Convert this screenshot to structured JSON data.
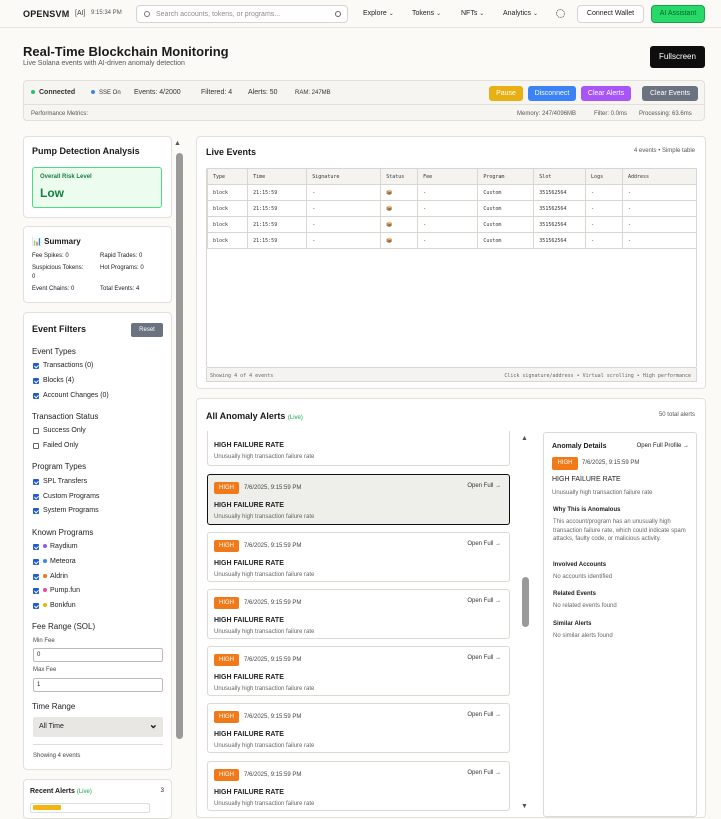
{
  "nav": {
    "brand": "OPENSVM",
    "ai": "[AI]",
    "time": "9:15:34 PM",
    "search_placeholder": "Search accounts, tokens, or programs...",
    "menus": [
      "Explore",
      "Tokens",
      "NFTs",
      "Analytics"
    ],
    "connect": "Connect Wallet",
    "assistant": "AI Assistant"
  },
  "page": {
    "title": "Real-Time Blockchain Monitoring",
    "subtitle": "Live Solana events with AI-driven anomaly detection",
    "fullscreen": "Fullscreen"
  },
  "status": {
    "connected": "Connected",
    "sse": "SSE On",
    "events": "Events: 4/2000",
    "filtered": "Filtered: 4",
    "alerts": "Alerts: 50",
    "ram": "RAM: 247MB",
    "perf_label": "Performance Metrics:",
    "memory": "Memory: 247/4096MB",
    "filter": "Filter: 0.0ms",
    "processing": "Processing: 63.6ms",
    "buttons": {
      "pause": "Pause",
      "disconnect": "Disconnect",
      "clear_alerts": "Clear Alerts",
      "clear_events": "Clear Events"
    }
  },
  "pump": {
    "title": "Pump Detection Analysis",
    "risk_label": "Overall Risk Level",
    "risk_value": "Low"
  },
  "summary": {
    "title": "📊 Summary",
    "fee_spikes": "Fee Spikes: 0",
    "rapid_trades": "Rapid Trades: 0",
    "suspicious": "Suspicious Tokens:",
    "suspicious_val": "0",
    "hot": "Hot Programs: 0",
    "chains": "Event Chains: 0",
    "total": "Total Events: 4"
  },
  "filters": {
    "title": "Event Filters",
    "reset": "Reset",
    "event_types": {
      "title": "Event Types",
      "items": [
        "Transactions (0)",
        "Blocks (4)",
        "Account Changes (0)"
      ]
    },
    "tx_status": {
      "title": "Transaction Status",
      "items": [
        "Success Only",
        "Failed Only"
      ]
    },
    "program_types": {
      "title": "Program Types",
      "items": [
        "SPL Transfers",
        "Custom Programs",
        "System Programs"
      ]
    },
    "known": {
      "title": "Known Programs",
      "items": [
        {
          "label": "Raydium",
          "color": "#8b5cf6"
        },
        {
          "label": "Meteora",
          "color": "#3b82f6"
        },
        {
          "label": "Aldrin",
          "color": "#f97316"
        },
        {
          "label": "Pump.fun",
          "color": "#ec4899"
        },
        {
          "label": "Bonkfun",
          "color": "#eab308"
        }
      ]
    },
    "fee": {
      "title": "Fee Range (SOL)",
      "min_label": "Min Fee",
      "min": "0",
      "max_label": "Max Fee",
      "max": "1"
    },
    "time": {
      "title": "Time Range",
      "value": "All Time"
    },
    "showing": "Showing 4 events"
  },
  "recent": {
    "title": "Recent Alerts",
    "live": "(Live)",
    "count": "3"
  },
  "live_events": {
    "title": "Live Events",
    "meta": "4 events • Simple table",
    "columns": [
      "Type",
      "Time",
      "Signature",
      "Status",
      "Fee",
      "Program",
      "Slot",
      "Logs",
      "Address"
    ],
    "rows": [
      [
        "block",
        "21:15:59",
        "-",
        "📦",
        "-",
        "Custom",
        "351562564",
        "-",
        "-"
      ],
      [
        "block",
        "21:15:59",
        "-",
        "📦",
        "-",
        "Custom",
        "351562564",
        "-",
        "-"
      ],
      [
        "block",
        "21:15:59",
        "-",
        "📦",
        "-",
        "Custom",
        "351562564",
        "-",
        "-"
      ],
      [
        "block",
        "21:15:59",
        "-",
        "📦",
        "-",
        "Custom",
        "351562564",
        "-",
        "-"
      ]
    ],
    "footer_left": "Showing 4 of 4 events",
    "footer_right": "Click signature/address • Virtual scrolling • High performance"
  },
  "anomaly": {
    "title": "All Anomaly Alerts",
    "live": "(Live)",
    "total": "50 total alerts",
    "partial": {
      "title": "HIGH FAILURE RATE",
      "desc": "Unusually high transaction failure rate"
    },
    "alerts": [
      {
        "badge": "HIGH",
        "date": "7/6/2025, 9:15:59 PM",
        "open": "Open Full →",
        "title": "HIGH FAILURE RATE",
        "desc": "Unusually high transaction failure rate"
      },
      {
        "badge": "HIGH",
        "date": "7/6/2025, 9:15:59 PM",
        "open": "Open Full →",
        "title": "HIGH FAILURE RATE",
        "desc": "Unusually high transaction failure rate"
      },
      {
        "badge": "HIGH",
        "date": "7/6/2025, 9:15:59 PM",
        "open": "Open Full →",
        "title": "HIGH FAILURE RATE",
        "desc": "Unusually high transaction failure rate"
      },
      {
        "badge": "HIGH",
        "date": "7/6/2025, 9:15:59 PM",
        "open": "Open Full →",
        "title": "HIGH FAILURE RATE",
        "desc": "Unusually high transaction failure rate"
      },
      {
        "badge": "HIGH",
        "date": "7/6/2025, 9:15:59 PM",
        "open": "Open Full →",
        "title": "HIGH FAILURE RATE",
        "desc": "Unusually high transaction failure rate"
      },
      {
        "badge": "HIGH",
        "date": "7/6/2025, 9:15:59 PM",
        "open": "Open Full →",
        "title": "HIGH FAILURE RATE",
        "desc": "Unusually high transaction failure rate"
      }
    ]
  },
  "details": {
    "title": "Anomaly Details",
    "open_profile": "Open Full Profile →",
    "badge": "HIGH",
    "date": "7/6/2025, 9:15:59 PM",
    "name": "HIGH FAILURE RATE",
    "desc": "Unusually high transaction failure rate",
    "why_title": "Why This is Anomalous",
    "why": "This account/program has an unusually high transaction failure rate, which could indicate spam attacks, faulty code, or malicious activity.",
    "accounts_title": "Involved Accounts",
    "accounts": "No accounts identified",
    "related_title": "Related Events",
    "related": "No related events found",
    "similar_title": "Similar Alerts",
    "similar": "No similar alerts found"
  }
}
